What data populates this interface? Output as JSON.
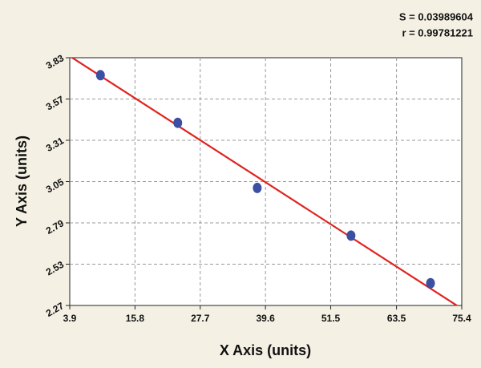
{
  "chart_data": {
    "type": "scatter",
    "annotations": [
      "S = 0.03989604",
      "r = 0.99781221"
    ],
    "x_label": "X Axis (units)",
    "y_label": "Y Axis (units)",
    "xlim": [
      3.9,
      75.4
    ],
    "xticks": [
      3.9,
      15.8,
      27.7,
      39.6,
      51.5,
      63.5,
      75.4
    ],
    "ylim": [
      2.27,
      3.83
    ],
    "yticks": [
      2.27,
      2.53,
      2.79,
      3.05,
      3.31,
      3.57,
      3.83
    ],
    "grid": true,
    "points": {
      "color": "#3b4fa3",
      "x": [
        9.5,
        23.6,
        38.1,
        55.2,
        69.7
      ],
      "values": [
        3.72,
        3.42,
        3.01,
        2.71,
        2.41
      ]
    },
    "fit": {
      "color": "#e0231e",
      "x": [
        3.9,
        75.4
      ],
      "values": [
        3.84,
        2.25
      ]
    }
  }
}
